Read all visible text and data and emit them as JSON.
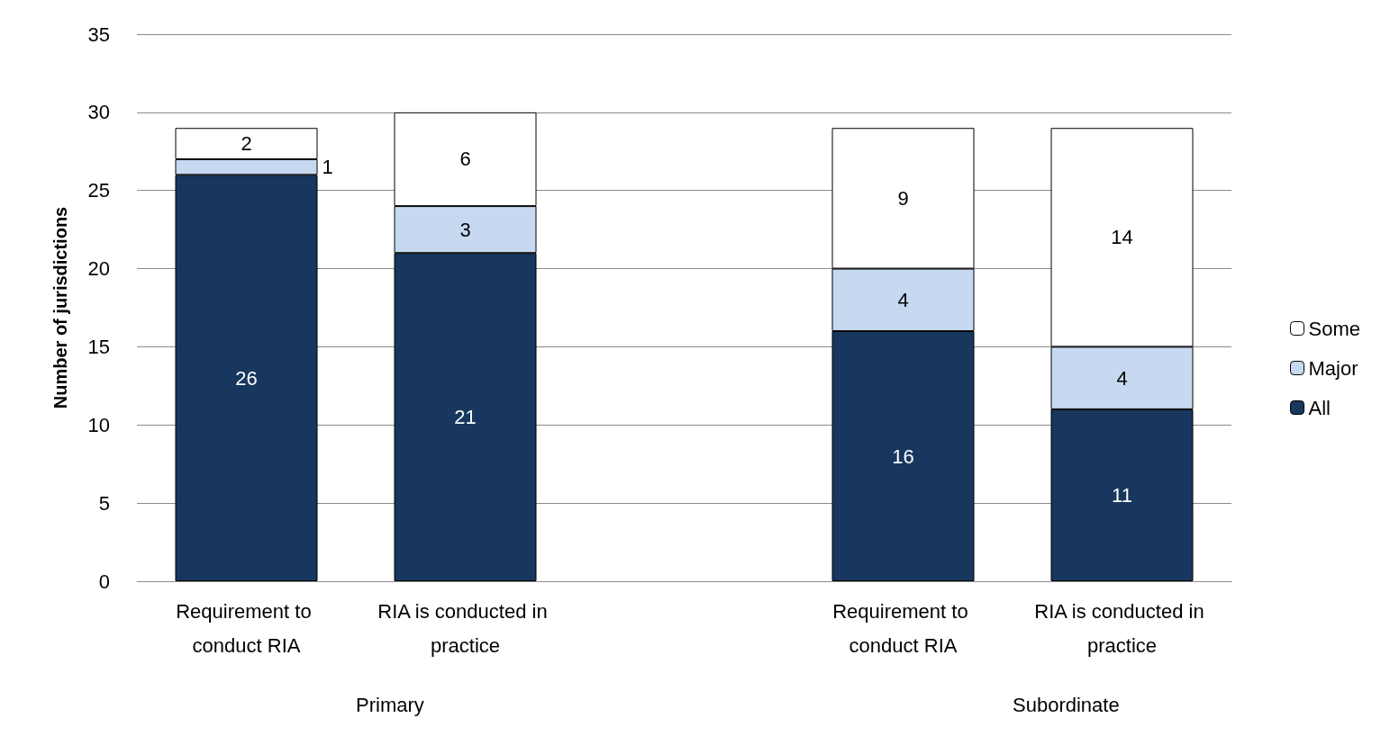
{
  "chart_data": {
    "type": "bar",
    "ylabel": "Number of jurisdictions",
    "categories": [
      "Requirement to conduct RIA",
      "RIA is conducted in practice",
      null,
      "Requirement to conduct RIA",
      "RIA is conducted in practice"
    ],
    "series": [
      {
        "name": "All",
        "color": "#17375e",
        "values": [
          26,
          21,
          null,
          16,
          11
        ]
      },
      {
        "name": "Major",
        "color": "#c6d9f1",
        "values": [
          1,
          3,
          null,
          4,
          4
        ]
      },
      {
        "name": "Some",
        "color": "#ffffff",
        "values": [
          2,
          6,
          null,
          9,
          14
        ]
      }
    ],
    "stacked": true,
    "data_labels": true,
    "ylim": [
      0,
      35
    ],
    "yticks": [
      0,
      5,
      10,
      15,
      20,
      25,
      30,
      35
    ],
    "grid": "y",
    "legend": "right",
    "annotations": [
      "Primary",
      "Subordinate"
    ]
  }
}
